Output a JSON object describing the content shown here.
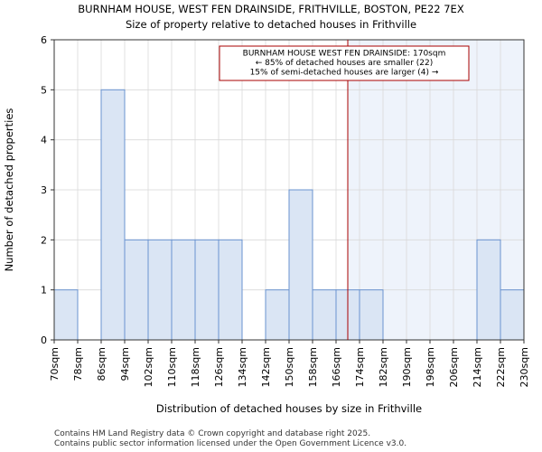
{
  "chart_data": {
    "type": "bar",
    "title": "BURNHAM HOUSE, WEST FEN DRAINSIDE, FRITHVILLE, BOSTON, PE22 7EX",
    "subtitle": "Size of property relative to detached houses in Frithville",
    "xlabel": "Distribution of detached houses by size in Frithville",
    "ylabel": "Number of detached properties",
    "bin_edges": [
      70,
      78,
      86,
      94,
      102,
      110,
      118,
      126,
      134,
      142,
      150,
      158,
      166,
      174,
      182,
      190,
      198,
      206,
      214,
      222,
      230
    ],
    "values": [
      1,
      0,
      5,
      2,
      2,
      2,
      2,
      2,
      0,
      1,
      3,
      1,
      1,
      1,
      0,
      0,
      0,
      0,
      2,
      1
    ],
    "tick_labels": [
      "70sqm",
      "78sqm",
      "86sqm",
      "94sqm",
      "102sqm",
      "110sqm",
      "118sqm",
      "126sqm",
      "134sqm",
      "142sqm",
      "150sqm",
      "158sqm",
      "166sqm",
      "174sqm",
      "182sqm",
      "190sqm",
      "198sqm",
      "206sqm",
      "214sqm",
      "222sqm",
      "230sqm"
    ],
    "y_ticks": [
      "0",
      "1",
      "2",
      "3",
      "4",
      "5",
      "6"
    ],
    "xlim": [
      70,
      230
    ],
    "ylim": [
      0,
      6
    ],
    "marker_value": 170,
    "highlight_from": 170,
    "annotation": [
      "BURNHAM HOUSE WEST FEN DRAINSIDE: 170sqm",
      "← 85% of detached houses are smaller (22)",
      "15% of semi-detached houses are larger (4) →"
    ],
    "colors": {
      "bar_fill": "#dae5f4",
      "bar_fill_highlight": "#dae5f4",
      "bar_edge": "#6a93cf",
      "highlight_bg": "#eef3fb",
      "marker": "#aa0000",
      "grid": "#d9d9d9"
    }
  },
  "footer": {
    "line1": "Contains HM Land Registry data © Crown copyright and database right 2025.",
    "line2": "Contains public sector information licensed under the Open Government Licence v3.0."
  }
}
